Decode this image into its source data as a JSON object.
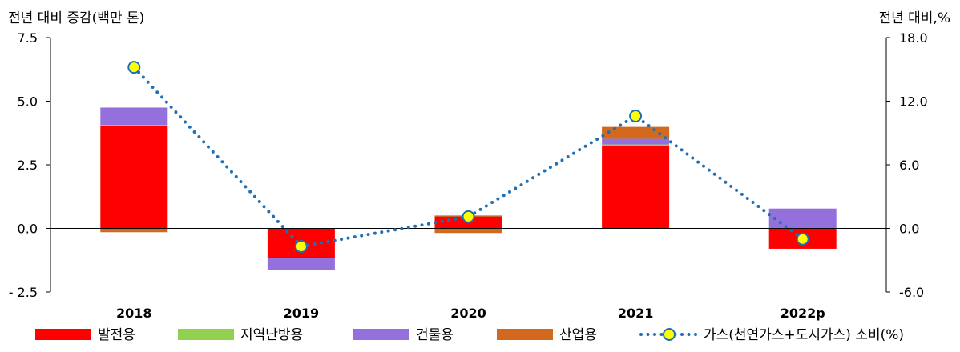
{
  "chart_data": {
    "type": "bar",
    "subtype": "stacked bar with line on secondary axis",
    "categories": [
      "2018",
      "2019",
      "2020",
      "2021",
      "2022p"
    ],
    "ylabel": "전년 대비 증감(백만 톤)",
    "y2label": "전년 대비,%",
    "ylim": [
      -2.5,
      7.5
    ],
    "y2lim": [
      -6.0,
      18.0
    ],
    "yticks": [
      "7.5",
      "5.0",
      "2.5",
      "0.0",
      "- 2.5"
    ],
    "y2ticks": [
      "18.0",
      "12.0",
      "6.0",
      "0.0",
      "-6.0"
    ],
    "series": [
      {
        "name": "발전용",
        "color": "#ff0000",
        "values": [
          4.05,
          -1.15,
          0.5,
          3.25,
          -0.8
        ]
      },
      {
        "name": "지역난방용",
        "color": "#92d050",
        "values": [
          0.02,
          0.0,
          0.02,
          0.05,
          0.0
        ]
      },
      {
        "name": "건물용",
        "color": "#9370db",
        "values": [
          0.68,
          -0.48,
          0.0,
          0.22,
          0.78
        ]
      },
      {
        "name": "산업용",
        "color": "#d2691e",
        "values": [
          -0.15,
          0.0,
          -0.18,
          0.47,
          0.0
        ]
      }
    ],
    "line_series": {
      "name": "가스(천연가스+도시가스) 소비(%)",
      "axis": "right",
      "line_color": "#1f6fb4",
      "marker_color": "#ffff00",
      "values": [
        15.2,
        -1.7,
        1.1,
        10.6,
        -1.0
      ]
    },
    "grid": false,
    "legend_position": "bottom"
  }
}
